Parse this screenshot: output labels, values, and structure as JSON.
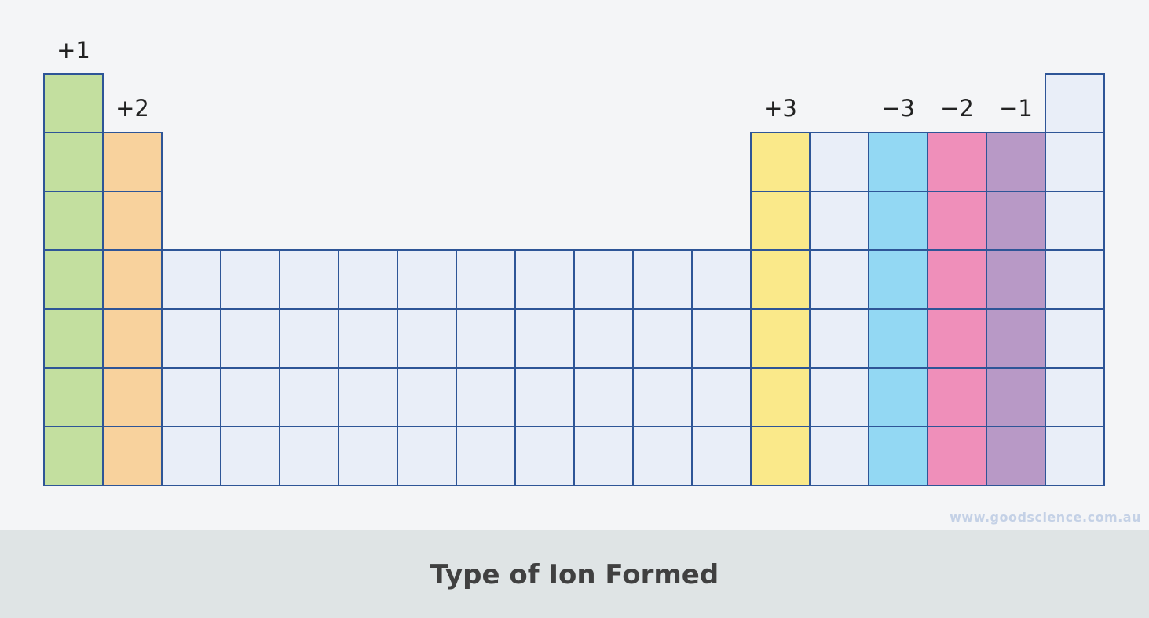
{
  "colors": {
    "plus1": "#c3df9f",
    "plus2": "#f8d29d",
    "plus3": "#fae98a",
    "minus3": "#93d8f3",
    "minus2": "#ef8fba",
    "minus1": "#b899c6",
    "other": "#e9eef8",
    "border": "#2e5597"
  },
  "group_labels": {
    "g1": "+1",
    "g2": "+2",
    "g13": "+3",
    "g15": "−3",
    "g16": "−2",
    "g17": "−1"
  },
  "watermark": "www.goodscience.com.au",
  "caption": "Type of Ion Formed"
}
